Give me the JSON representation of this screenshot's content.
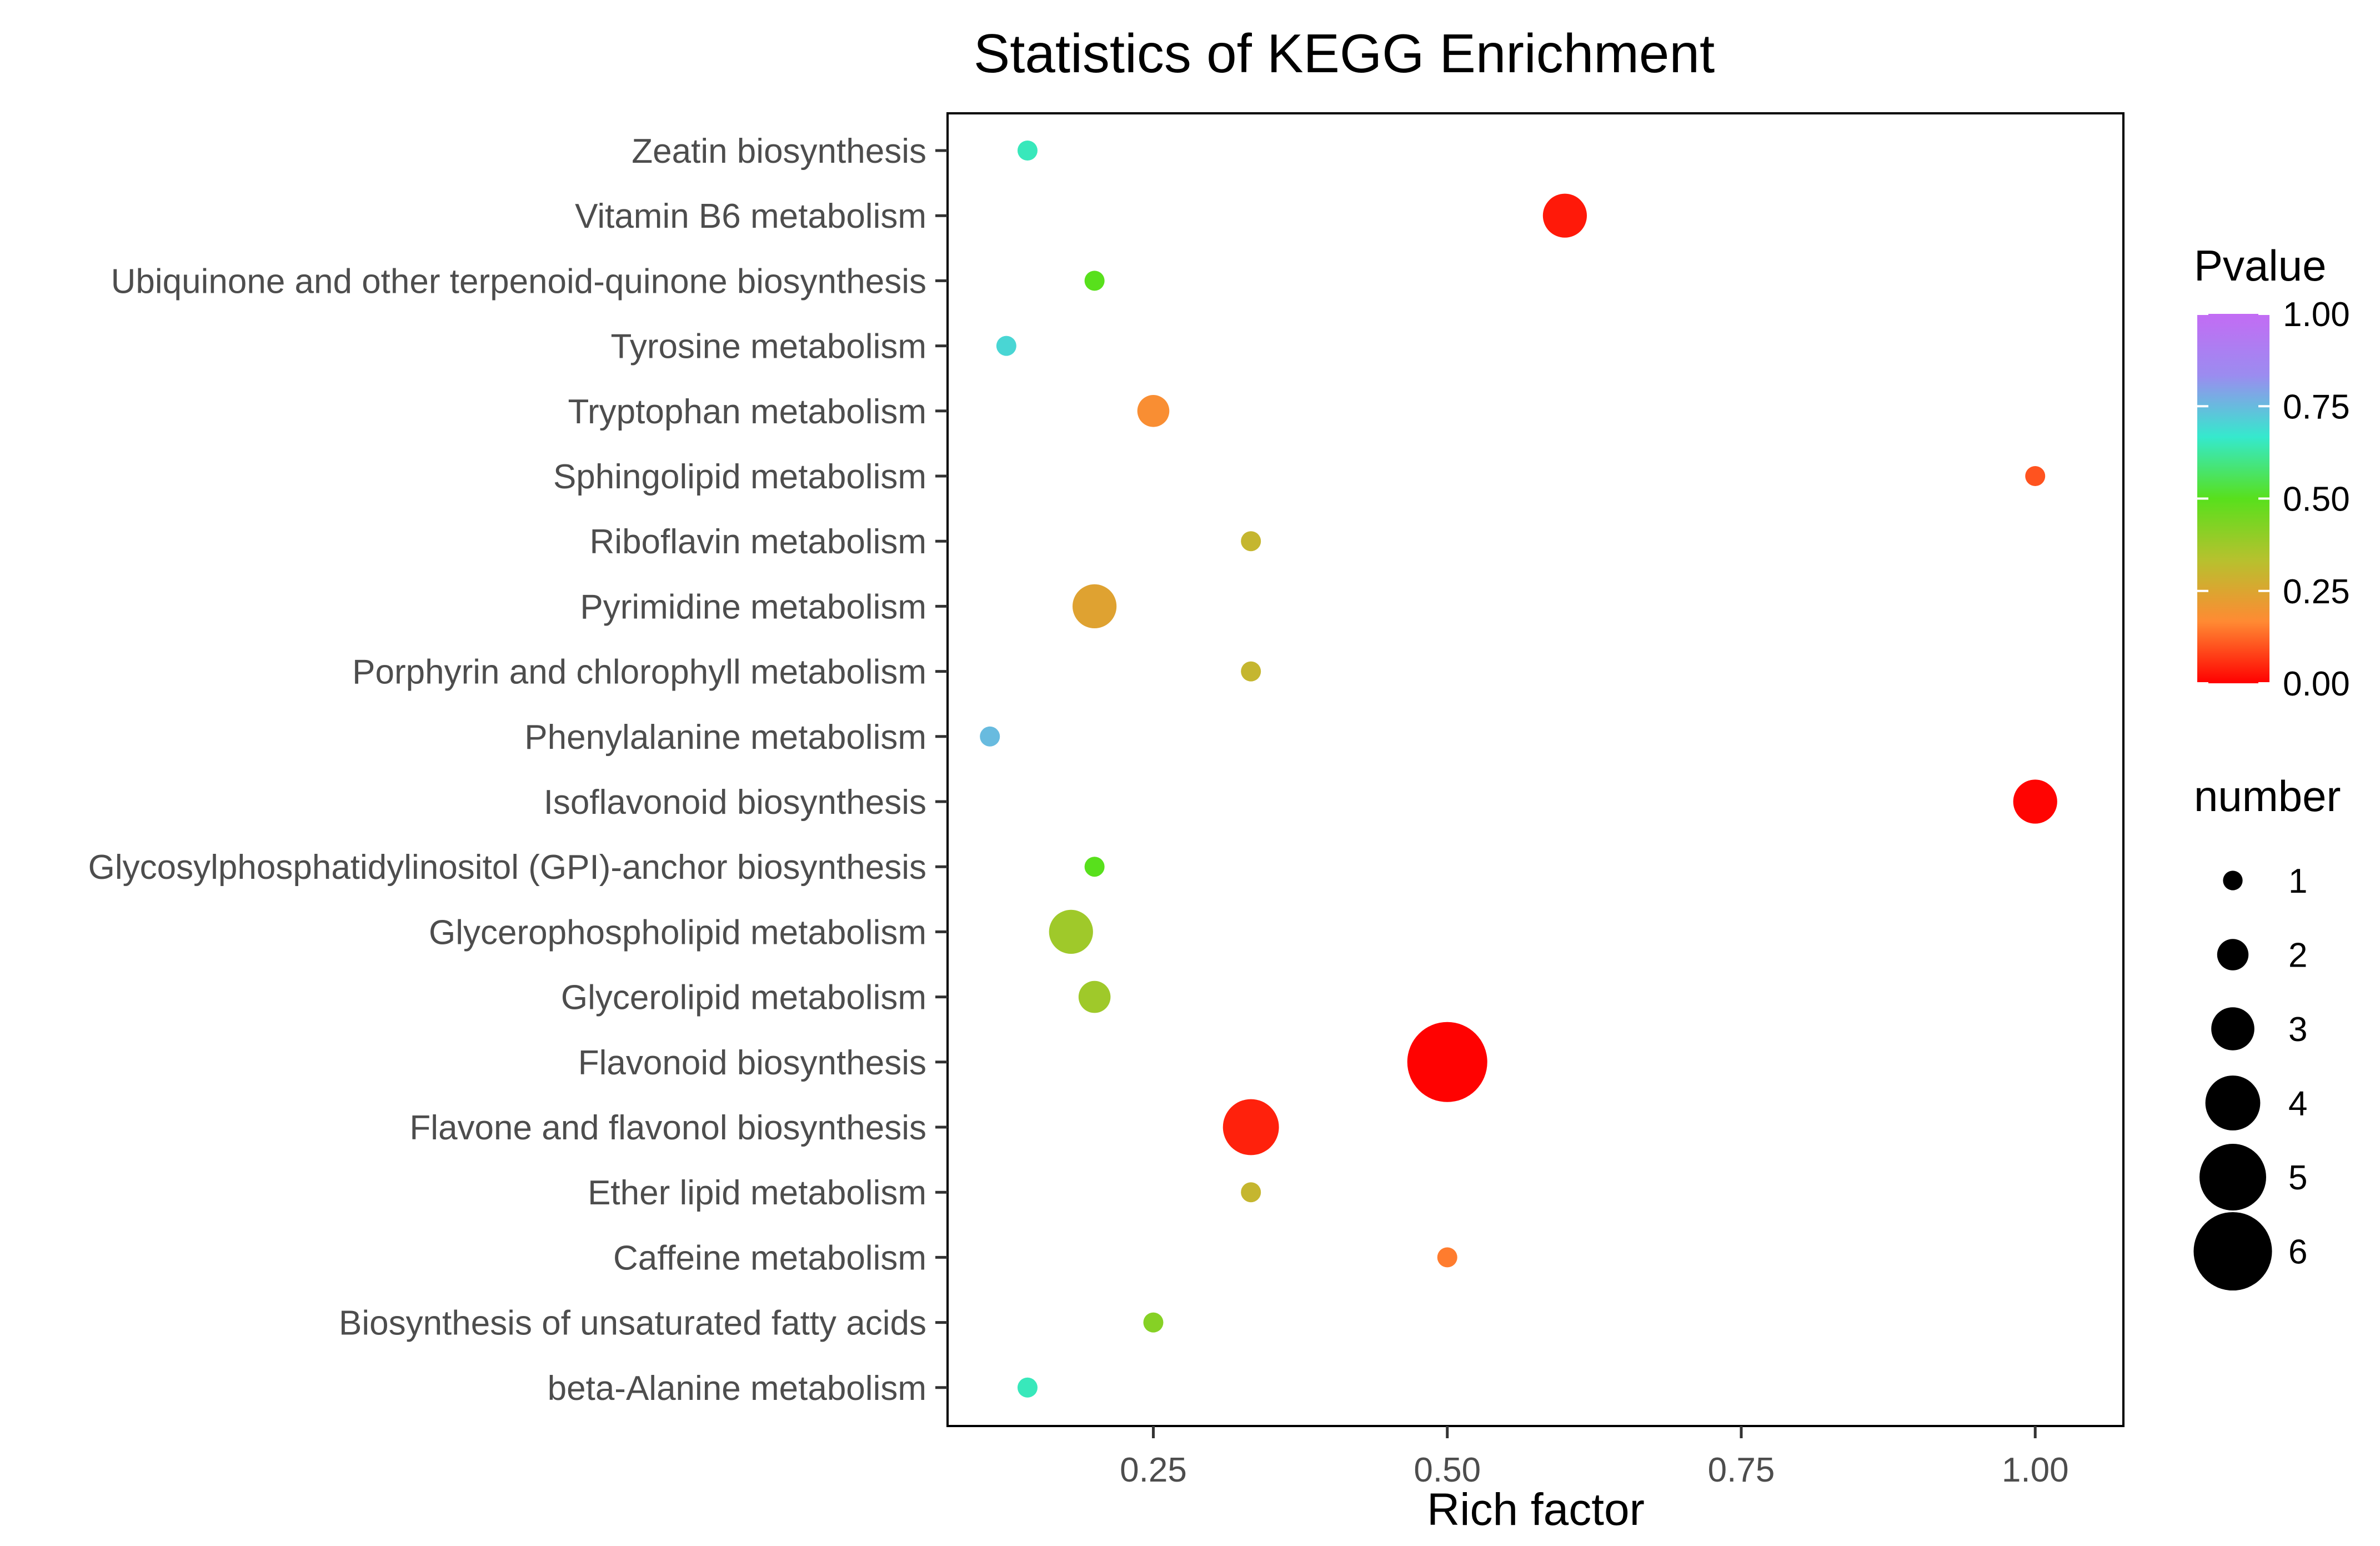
{
  "chart_data": {
    "type": "scatter",
    "title": "Statistics of KEGG Enrichment",
    "xlabel": "Rich factor",
    "ylabel": "",
    "xlim": [
      0.075,
      1.075
    ],
    "xticks": [
      0.25,
      0.5,
      0.75,
      1.0
    ],
    "xtick_labels": [
      "0.25",
      "0.50",
      "0.75",
      "1.00"
    ],
    "grid": false,
    "categories": [
      "Zeatin biosynthesis",
      "Vitamin B6 metabolism",
      "Ubiquinone and other terpenoid-quinone biosynthesis",
      "Tyrosine metabolism",
      "Tryptophan metabolism",
      "Sphingolipid metabolism",
      "Riboflavin metabolism",
      "Pyrimidine metabolism",
      "Porphyrin and chlorophyll metabolism",
      "Phenylalanine metabolism",
      "Isoflavonoid biosynthesis",
      "Glycosylphosphatidylinositol (GPI)-anchor biosynthesis",
      "Glycerophospholipid metabolism",
      "Glycerolipid metabolism",
      "Flavonoid biosynthesis",
      "Flavone and flavonol biosynthesis",
      "Ether lipid metabolism",
      "Caffeine metabolism",
      "Biosynthesis of unsaturated fatty acids",
      "beta-Alanine metabolism"
    ],
    "points": [
      {
        "pathway": "Zeatin biosynthesis",
        "rich_factor": 0.143,
        "number": 1,
        "pvalue": 0.65
      },
      {
        "pathway": "Vitamin B6 metabolism",
        "rich_factor": 0.6,
        "number": 3,
        "pvalue": 0.03
      },
      {
        "pathway": "Ubiquinone and other terpenoid-quinone biosynthesis",
        "rich_factor": 0.2,
        "number": 1,
        "pvalue": 0.5
      },
      {
        "pathway": "Tyrosine metabolism",
        "rich_factor": 0.125,
        "number": 1,
        "pvalue": 0.7
      },
      {
        "pathway": "Tryptophan metabolism",
        "rich_factor": 0.25,
        "number": 2,
        "pvalue": 0.18
      },
      {
        "pathway": "Sphingolipid metabolism",
        "rich_factor": 1.0,
        "number": 1,
        "pvalue": 0.1
      },
      {
        "pathway": "Riboflavin metabolism",
        "rich_factor": 0.333,
        "number": 1,
        "pvalue": 0.3
      },
      {
        "pathway": "Pyrimidine metabolism",
        "rich_factor": 0.2,
        "number": 3,
        "pvalue": 0.24
      },
      {
        "pathway": "Porphyrin and chlorophyll metabolism",
        "rich_factor": 0.333,
        "number": 1,
        "pvalue": 0.3
      },
      {
        "pathway": "Phenylalanine metabolism",
        "rich_factor": 0.111,
        "number": 1,
        "pvalue": 0.75
      },
      {
        "pathway": "Isoflavonoid biosynthesis",
        "rich_factor": 1.0,
        "number": 3,
        "pvalue": 0.005
      },
      {
        "pathway": "Glycosylphosphatidylinositol (GPI)-anchor biosynthesis",
        "rich_factor": 0.2,
        "number": 1,
        "pvalue": 0.5
      },
      {
        "pathway": "Glycerophospholipid metabolism",
        "rich_factor": 0.18,
        "number": 3,
        "pvalue": 0.375
      },
      {
        "pathway": "Glycerolipid metabolism",
        "rich_factor": 0.2,
        "number": 2,
        "pvalue": 0.375
      },
      {
        "pathway": "Flavonoid biosynthesis",
        "rich_factor": 0.5,
        "number": 6,
        "pvalue": 0.003
      },
      {
        "pathway": "Flavone and flavonol biosynthesis",
        "rich_factor": 0.333,
        "number": 4,
        "pvalue": 0.04
      },
      {
        "pathway": "Ether lipid metabolism",
        "rich_factor": 0.333,
        "number": 1,
        "pvalue": 0.3
      },
      {
        "pathway": "Caffeine metabolism",
        "rich_factor": 0.5,
        "number": 1,
        "pvalue": 0.15
      },
      {
        "pathway": "Biosynthesis of unsaturated fatty acids",
        "rich_factor": 0.25,
        "number": 1,
        "pvalue": 0.42
      },
      {
        "pathway": "beta-Alanine metabolism",
        "rich_factor": 0.143,
        "number": 1,
        "pvalue": 0.65
      }
    ],
    "color_legend": {
      "title": "Pvalue",
      "range": [
        0,
        1
      ],
      "ticks": [
        1.0,
        0.75,
        0.5,
        0.25,
        0.0
      ],
      "tick_labels": [
        "1.00",
        "0.75",
        "0.50",
        "0.25",
        "0.00"
      ],
      "gradient": [
        "#ff0000",
        "#ff8a33",
        "#b7c12e",
        "#58e01c",
        "#35e9cd",
        "#9b8cf0",
        "#c36cf4"
      ]
    },
    "size_legend": {
      "title": "number",
      "values": [
        1,
        2,
        3,
        4,
        5,
        6
      ],
      "labels": [
        "1",
        "2",
        "3",
        "4",
        "5",
        "6"
      ]
    }
  }
}
